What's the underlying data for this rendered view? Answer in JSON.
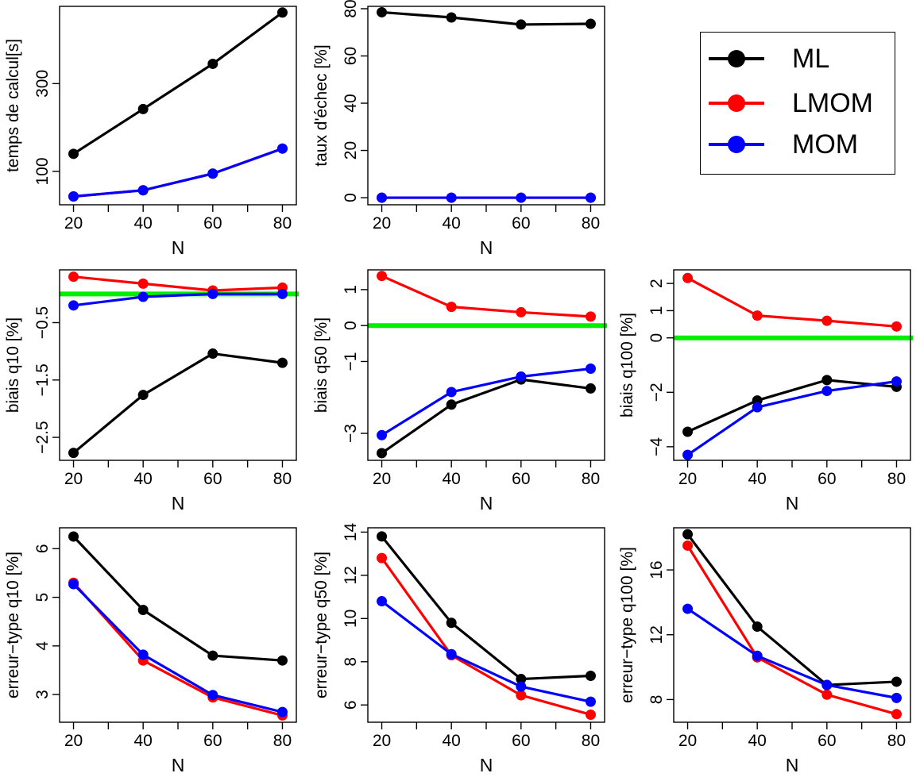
{
  "colors": {
    "ML": "#000000",
    "LMOM": "#ff0000",
    "MOM": "#0000ff",
    "zero_line": "#00ee00"
  },
  "legend": {
    "items": [
      {
        "label": "ML",
        "color": "#000000"
      },
      {
        "label": "LMOM",
        "color": "#ff0000"
      },
      {
        "label": "MOM",
        "color": "#0000ff"
      }
    ]
  },
  "chart_data": [
    {
      "type": "line",
      "ylabel": "temps de calcul[s]",
      "xlabel": "N",
      "x": [
        20,
        40,
        60,
        80
      ],
      "xticks": [
        "20",
        "40",
        "60",
        "80"
      ],
      "ylim": [
        24,
        476
      ],
      "yticks": [
        100,
        300
      ],
      "grid": false,
      "zero_line": false,
      "series": [
        {
          "name": "ML",
          "values": [
            140,
            242,
            345,
            462
          ]
        },
        {
          "name": "LMOM",
          "values": [
            43,
            57,
            95,
            152
          ]
        },
        {
          "name": "MOM",
          "values": [
            43,
            57,
            95,
            152
          ]
        }
      ]
    },
    {
      "type": "line",
      "ylabel": "taux d'échec [%]",
      "xlabel": "N",
      "x": [
        20,
        40,
        60,
        80
      ],
      "xticks": [
        "20",
        "40",
        "60",
        "80"
      ],
      "ylim": [
        -3,
        81
      ],
      "yticks": [
        0,
        20,
        40,
        60,
        80
      ],
      "grid": false,
      "zero_line": false,
      "series": [
        {
          "name": "ML",
          "values": [
            78.5,
            76.3,
            73.3,
            73.6
          ]
        },
        {
          "name": "LMOM",
          "values": [
            0,
            0,
            0,
            0
          ]
        },
        {
          "name": "MOM",
          "values": [
            0,
            0,
            0,
            0
          ]
        }
      ]
    },
    {
      "type": "line",
      "ylabel": "biais q10 [%]",
      "xlabel": "N",
      "x": [
        20,
        40,
        60,
        80
      ],
      "xticks": [
        "20",
        "40",
        "60",
        "80"
      ],
      "ylim": [
        -2.9,
        0.42
      ],
      "yticks": [
        -2.5,
        -1.5,
        -0.5
      ],
      "grid": false,
      "zero_line": true,
      "series": [
        {
          "name": "ML",
          "values": [
            -2.77,
            -1.76,
            -1.04,
            -1.2
          ]
        },
        {
          "name": "LMOM",
          "values": [
            0.3,
            0.18,
            0.06,
            0.11
          ]
        },
        {
          "name": "MOM",
          "values": [
            -0.2,
            -0.05,
            0.0,
            0.0
          ]
        }
      ]
    },
    {
      "type": "line",
      "ylabel": "biais q50 [%]",
      "xlabel": "N",
      "x": [
        20,
        40,
        60,
        80
      ],
      "xticks": [
        "20",
        "40",
        "60",
        "80"
      ],
      "ylim": [
        -3.75,
        1.55
      ],
      "yticks": [
        -3,
        -1,
        0,
        1
      ],
      "grid": false,
      "zero_line": true,
      "series": [
        {
          "name": "ML",
          "values": [
            -3.55,
            -2.2,
            -1.5,
            -1.75
          ]
        },
        {
          "name": "LMOM",
          "values": [
            1.38,
            0.52,
            0.37,
            0.25
          ]
        },
        {
          "name": "MOM",
          "values": [
            -3.05,
            -1.85,
            -1.42,
            -1.2
          ]
        }
      ]
    },
    {
      "type": "line",
      "ylabel": "biais q100 [%]",
      "xlabel": "N",
      "x": [
        20,
        40,
        60,
        80
      ],
      "xticks": [
        "20",
        "40",
        "60",
        "80"
      ],
      "ylim": [
        -4.5,
        2.5
      ],
      "yticks": [
        -4,
        -2,
        0,
        1,
        2
      ],
      "grid": false,
      "zero_line": true,
      "series": [
        {
          "name": "ML",
          "values": [
            -3.45,
            -2.3,
            -1.55,
            -1.8
          ]
        },
        {
          "name": "LMOM",
          "values": [
            2.2,
            0.82,
            0.63,
            0.42
          ]
        },
        {
          "name": "MOM",
          "values": [
            -4.3,
            -2.55,
            -1.95,
            -1.6
          ]
        }
      ]
    },
    {
      "type": "line",
      "ylabel": "erreur−type q10 [%]",
      "xlabel": "N",
      "x": [
        20,
        40,
        60,
        80
      ],
      "xticks": [
        "20",
        "40",
        "60",
        "80"
      ],
      "ylim": [
        2.43,
        6.43
      ],
      "yticks": [
        3,
        4,
        5,
        6
      ],
      "grid": false,
      "zero_line": false,
      "series": [
        {
          "name": "ML",
          "values": [
            6.25,
            4.74,
            3.8,
            3.7
          ]
        },
        {
          "name": "LMOM",
          "values": [
            5.3,
            3.7,
            2.94,
            2.57
          ]
        },
        {
          "name": "MOM",
          "values": [
            5.27,
            3.82,
            2.99,
            2.64
          ]
        }
      ]
    },
    {
      "type": "line",
      "ylabel": "erreur−type q50 [%]",
      "xlabel": "N",
      "x": [
        20,
        40,
        60,
        80
      ],
      "xticks": [
        "20",
        "40",
        "60",
        "80"
      ],
      "ylim": [
        5.2,
        14.2
      ],
      "yticks": [
        6,
        8,
        10,
        12,
        14
      ],
      "grid": false,
      "zero_line": false,
      "series": [
        {
          "name": "ML",
          "values": [
            13.8,
            9.8,
            7.2,
            7.35
          ]
        },
        {
          "name": "LMOM",
          "values": [
            12.8,
            8.3,
            6.45,
            5.55
          ]
        },
        {
          "name": "MOM",
          "values": [
            10.8,
            8.35,
            6.85,
            6.15
          ]
        }
      ]
    },
    {
      "type": "line",
      "ylabel": "erreur−type q100 [%]",
      "xlabel": "N",
      "x": [
        20,
        40,
        60,
        80
      ],
      "xticks": [
        "20",
        "40",
        "60",
        "80"
      ],
      "ylim": [
        6.6,
        18.6
      ],
      "yticks": [
        8,
        12,
        16
      ],
      "grid": false,
      "zero_line": false,
      "series": [
        {
          "name": "ML",
          "values": [
            18.2,
            12.5,
            8.9,
            9.1
          ]
        },
        {
          "name": "LMOM",
          "values": [
            17.5,
            10.6,
            8.3,
            7.1
          ]
        },
        {
          "name": "MOM",
          "values": [
            13.6,
            10.7,
            8.9,
            8.1
          ]
        }
      ]
    }
  ]
}
